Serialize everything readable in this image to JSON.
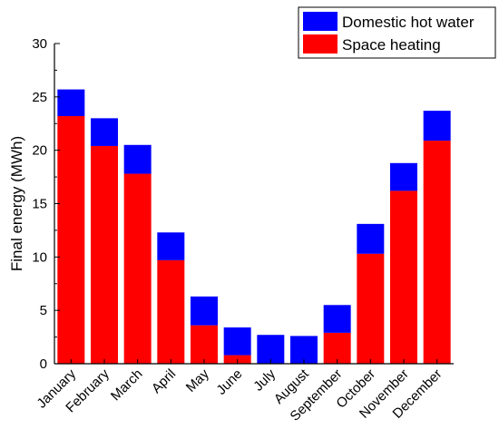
{
  "chart_data": {
    "type": "bar",
    "stacked": true,
    "categories": [
      "January",
      "February",
      "March",
      "April",
      "May",
      "June",
      "July",
      "August",
      "September",
      "October",
      "November",
      "December"
    ],
    "series": [
      {
        "name": "Space heating",
        "color": "#ff0000",
        "values": [
          23.2,
          20.4,
          17.8,
          9.7,
          3.6,
          0.8,
          0,
          0,
          2.9,
          10.3,
          16.2,
          20.9
        ]
      },
      {
        "name": "Domestic hot water",
        "color": "#0000ff",
        "values": [
          2.5,
          2.6,
          2.7,
          2.6,
          2.7,
          2.6,
          2.7,
          2.6,
          2.6,
          2.8,
          2.6,
          2.8
        ]
      }
    ],
    "ylabel": "Final energy (MWh)",
    "xlabel": "",
    "ylim": [
      0,
      30
    ],
    "yticks": [
      0,
      5,
      10,
      15,
      20,
      25,
      30
    ],
    "legend_position": "top-right",
    "grid": false
  }
}
